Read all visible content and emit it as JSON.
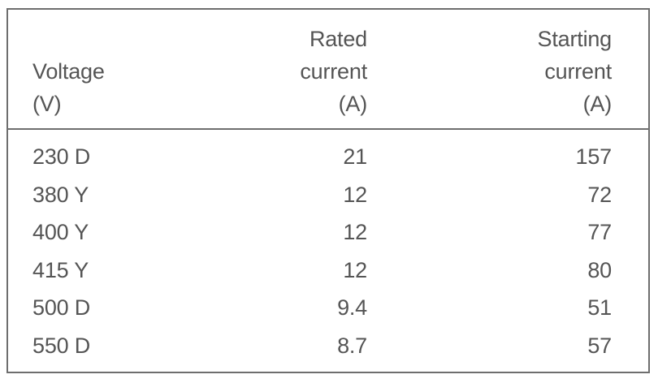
{
  "table": {
    "headers": {
      "voltage": [
        "Voltage",
        "(V)"
      ],
      "rated": [
        "Rated",
        "current",
        "(A)"
      ],
      "starting": [
        "Starting",
        "current",
        "(A)"
      ]
    },
    "rows": [
      {
        "voltage": "230 D",
        "rated": "21",
        "starting": "157"
      },
      {
        "voltage": "380 Y",
        "rated": "12",
        "starting": "72"
      },
      {
        "voltage": "400 Y",
        "rated": "12",
        "starting": "77"
      },
      {
        "voltage": "415 Y",
        "rated": "12",
        "starting": "80"
      },
      {
        "voltage": "500 D",
        "rated": "9.4",
        "starting": "51"
      },
      {
        "voltage": "550 D",
        "rated": "8.7",
        "starting": "57"
      }
    ]
  }
}
